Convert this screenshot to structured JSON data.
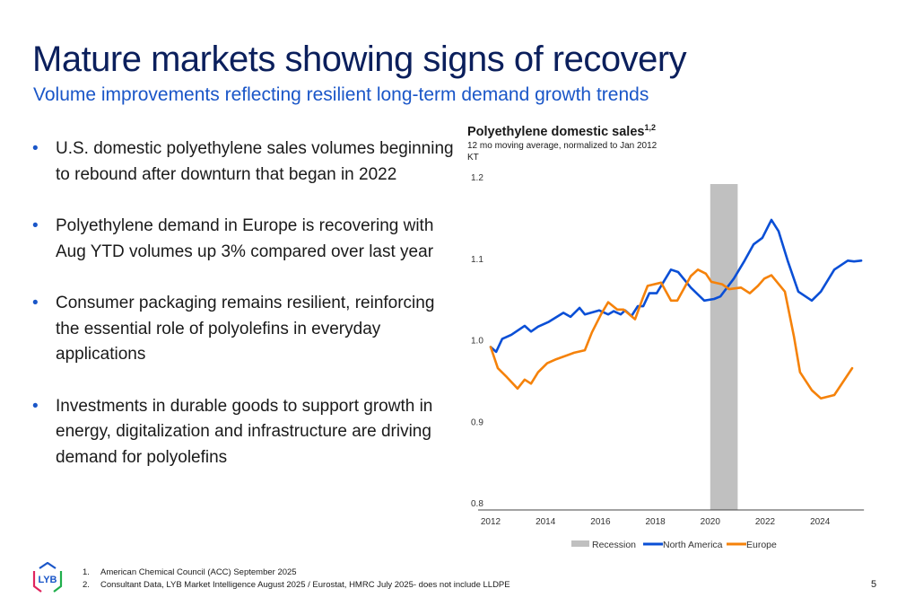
{
  "header": {
    "title": "Mature markets showing signs of recovery",
    "subtitle": "Volume improvements reflecting resilient long-term demand growth trends"
  },
  "bullets": [
    "U.S. domestic polyethylene sales volumes beginning to rebound after downturn that began in 2022",
    "Polyethylene demand in Europe is recovering with Aug YTD volumes up 3% compared over last year",
    "Consumer packaging remains resilient, reinforcing the essential role of polyolefins in everyday applications",
    "Investments in durable goods to support growth in energy, digitalization and infrastructure are driving demand for polyolefins"
  ],
  "bullet_glyph": "•",
  "chart_data": {
    "type": "line",
    "title": "Polyethylene domestic sales",
    "title_superscript": "1,2",
    "subtitle": "12 mo moving average, normalized to Jan 2012",
    "unit": "KT",
    "xlim": [
      2012,
      2025.6
    ],
    "ylim": [
      0.8,
      1.2
    ],
    "x_ticks": [
      "2012",
      "2014",
      "2016",
      "2018",
      "2020",
      "2022",
      "2024"
    ],
    "y_ticks": [
      "0.8",
      "0.9",
      "1.0",
      "1.1",
      "1.2"
    ],
    "grid": false,
    "legend_position": "bottom",
    "recession": {
      "name": "Recession",
      "start": 2020.0,
      "end": 2021.0,
      "color": "#c0c0c0"
    },
    "series": [
      {
        "name": "North America",
        "color": "#0a4fd6",
        "points": [
          [
            2012.0,
            1.0
          ],
          [
            2012.2,
            0.994
          ],
          [
            2012.42,
            1.01
          ],
          [
            2012.75,
            1.015
          ],
          [
            2013.24,
            1.026
          ],
          [
            2013.47,
            1.019
          ],
          [
            2013.73,
            1.025
          ],
          [
            2014.12,
            1.031
          ],
          [
            2014.65,
            1.042
          ],
          [
            2014.91,
            1.037
          ],
          [
            2015.24,
            1.048
          ],
          [
            2015.43,
            1.04
          ],
          [
            2015.95,
            1.045
          ],
          [
            2016.28,
            1.04
          ],
          [
            2016.48,
            1.044
          ],
          [
            2016.74,
            1.04
          ],
          [
            2016.9,
            1.045
          ],
          [
            2017.13,
            1.038
          ],
          [
            2017.36,
            1.05
          ],
          [
            2017.56,
            1.05
          ],
          [
            2017.78,
            1.066
          ],
          [
            2018.05,
            1.066
          ],
          [
            2018.57,
            1.095
          ],
          [
            2018.83,
            1.092
          ],
          [
            2019.29,
            1.073
          ],
          [
            2019.78,
            1.057
          ],
          [
            2020.14,
            1.059
          ],
          [
            2020.37,
            1.062
          ],
          [
            2020.86,
            1.084
          ],
          [
            2021.25,
            1.106
          ],
          [
            2021.58,
            1.126
          ],
          [
            2021.9,
            1.134
          ],
          [
            2022.23,
            1.156
          ],
          [
            2022.49,
            1.142
          ],
          [
            2022.82,
            1.106
          ],
          [
            2023.21,
            1.068
          ],
          [
            2023.7,
            1.057
          ],
          [
            2024.03,
            1.068
          ],
          [
            2024.52,
            1.095
          ],
          [
            2025.01,
            1.106
          ],
          [
            2025.24,
            1.105
          ],
          [
            2025.5,
            1.106
          ]
        ]
      },
      {
        "name": "Europe",
        "color": "#f5820a",
        "points": [
          [
            2012.0,
            1.0
          ],
          [
            2012.26,
            0.974
          ],
          [
            2012.59,
            0.963
          ],
          [
            2012.98,
            0.949
          ],
          [
            2013.24,
            0.96
          ],
          [
            2013.47,
            0.955
          ],
          [
            2013.73,
            0.969
          ],
          [
            2014.06,
            0.98
          ],
          [
            2014.39,
            0.985
          ],
          [
            2015.04,
            0.993
          ],
          [
            2015.43,
            0.996
          ],
          [
            2015.69,
            1.018
          ],
          [
            2016.02,
            1.04
          ],
          [
            2016.28,
            1.055
          ],
          [
            2016.61,
            1.046
          ],
          [
            2016.84,
            1.046
          ],
          [
            2017.26,
            1.034
          ],
          [
            2017.52,
            1.058
          ],
          [
            2017.72,
            1.075
          ],
          [
            2018.21,
            1.079
          ],
          [
            2018.57,
            1.057
          ],
          [
            2018.8,
            1.057
          ],
          [
            2019.29,
            1.087
          ],
          [
            2019.55,
            1.095
          ],
          [
            2019.84,
            1.09
          ],
          [
            2020.04,
            1.08
          ],
          [
            2020.43,
            1.077
          ],
          [
            2020.69,
            1.071
          ],
          [
            2021.12,
            1.073
          ],
          [
            2021.44,
            1.066
          ],
          [
            2021.74,
            1.075
          ],
          [
            2021.97,
            1.084
          ],
          [
            2022.23,
            1.088
          ],
          [
            2022.72,
            1.068
          ],
          [
            2023.05,
            1.013
          ],
          [
            2023.27,
            0.969
          ],
          [
            2023.7,
            0.947
          ],
          [
            2024.03,
            0.937
          ],
          [
            2024.52,
            0.941
          ],
          [
            2025.17,
            0.974
          ]
        ]
      }
    ]
  },
  "footnotes": [
    {
      "num": "1.",
      "text": "American Chemical Council (ACC) September 2025"
    },
    {
      "num": "2.",
      "text": "Consultant Data, LYB Market Intelligence August 2025 / Eurostat, HMRC July 2025- does not include LLDPE"
    }
  ],
  "logo": {
    "text": "LYB"
  },
  "page_number": "5"
}
